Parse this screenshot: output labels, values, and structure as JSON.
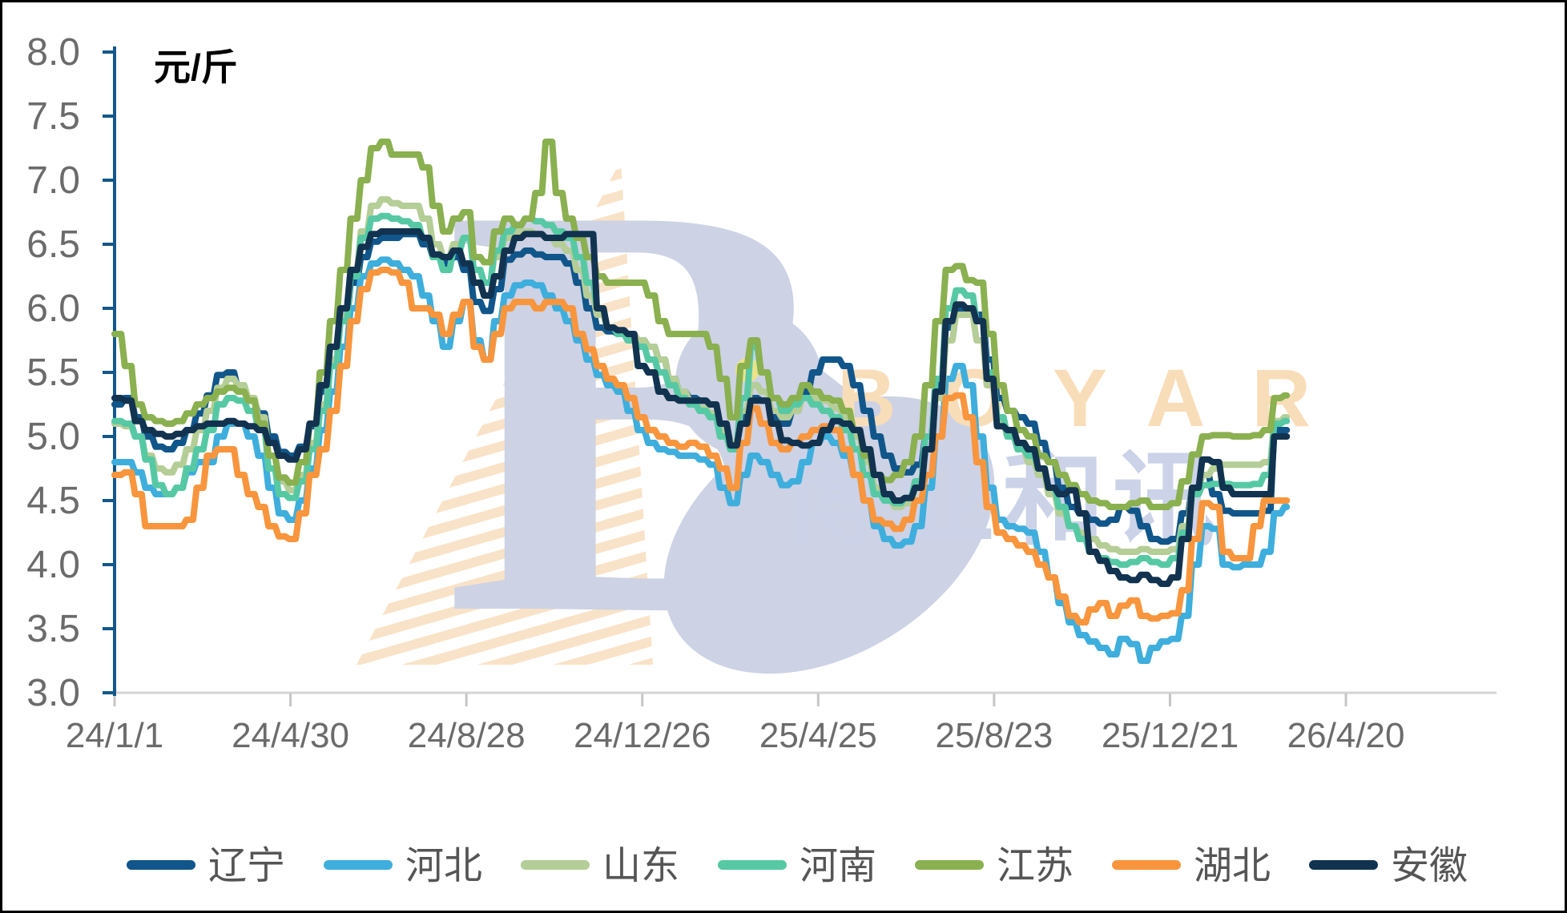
{
  "chart": {
    "unit_label": "元/斤",
    "axes": {
      "y_axis_color": "#14578b",
      "y_label_color": "#6b6b6b",
      "x_line_color": "#d4d4d4",
      "x_tick_color": "#c6c6c6",
      "x_label_color": "#6b6b6b",
      "y_tick_labels": [
        "8.0",
        "7.5",
        "7.0",
        "6.5",
        "6.0",
        "5.5",
        "5.0",
        "4.5",
        "4.0",
        "3.5",
        "3.0"
      ],
      "x_tick_labels": [
        "24/1/1",
        "24/4/30",
        "24/8/28",
        "24/12/26",
        "25/4/25",
        "25/8/23",
        "25/12/21",
        "26/4/20"
      ]
    },
    "watermark": {
      "latin": "BOYAR",
      "cn": "博亚和讯",
      "body_color": "#cdd2e4",
      "stripe_color": "#f8e3c8",
      "latin_color": "#f8ddb9",
      "cn_color": "#ccd3e8",
      "eye_color": "#ece28a"
    }
  },
  "legend": {
    "items": [
      {
        "label": "辽宁",
        "color": "#11568a"
      },
      {
        "label": "河北",
        "color": "#3eaedd"
      },
      {
        "label": "山东",
        "color": "#b5cd96"
      },
      {
        "label": "河南",
        "color": "#56c9a4"
      },
      {
        "label": "江苏",
        "color": "#8ab04f"
      },
      {
        "label": "湖北",
        "color": "#f8953d"
      },
      {
        "label": "安徽",
        "color": "#123350"
      }
    ]
  },
  "chart_data": {
    "type": "line",
    "title": "",
    "ylabel": "元/斤",
    "ylim": [
      3.0,
      8.0
    ],
    "y_tick_step": 0.5,
    "x_start_date": "24/1/1",
    "x_interval_days": 7,
    "x_tick_interval_days": 120,
    "x_tick_labels": [
      "24/1/1",
      "24/4/30",
      "24/8/28",
      "24/12/26",
      "25/4/25",
      "25/8/23",
      "25/12/21",
      "26/4/20"
    ],
    "grid": false,
    "legend_position": "bottom",
    "series": [
      {
        "name": "辽宁",
        "color": "#11568a",
        "values": [
          5.25,
          5.3,
          5.15,
          5.0,
          4.92,
          4.9,
          4.95,
          5.05,
          5.18,
          5.32,
          5.48,
          5.5,
          5.38,
          5.28,
          5.18,
          5.0,
          4.88,
          4.85,
          4.92,
          5.08,
          5.35,
          5.6,
          5.9,
          6.2,
          6.4,
          6.52,
          6.55,
          6.55,
          6.58,
          6.58,
          6.5,
          6.4,
          6.35,
          6.4,
          6.3,
          6.05,
          5.98,
          6.15,
          6.38,
          6.42,
          6.45,
          6.42,
          6.4,
          6.4,
          6.35,
          6.2,
          6.0,
          5.85,
          5.82,
          5.8,
          5.8,
          5.75,
          5.7,
          5.6,
          5.45,
          5.35,
          5.3,
          5.28,
          5.25,
          5.1,
          4.95,
          5.15,
          5.3,
          5.28,
          5.15,
          5.1,
          5.2,
          5.35,
          5.5,
          5.6,
          5.6,
          5.55,
          5.4,
          5.2,
          5.0,
          4.85,
          4.75,
          4.72,
          4.78,
          5.0,
          5.4,
          5.85,
          6.0,
          6.0,
          5.95,
          5.6,
          5.3,
          5.2,
          5.15,
          5.1,
          4.95,
          4.8,
          4.6,
          4.45,
          4.4,
          4.35,
          4.32,
          4.35,
          4.45,
          4.42,
          4.3,
          4.2,
          4.18,
          4.2,
          4.4,
          4.6,
          4.7,
          4.55,
          4.42,
          4.4,
          4.4,
          4.4,
          4.42,
          5.05,
          5.05
        ]
      },
      {
        "name": "河北",
        "color": "#3eaedd",
        "values": [
          4.8,
          4.8,
          4.72,
          4.6,
          4.55,
          4.55,
          4.6,
          4.72,
          4.8,
          4.8,
          5.0,
          5.1,
          5.1,
          5.0,
          4.85,
          4.6,
          4.4,
          4.35,
          4.5,
          4.75,
          5.05,
          5.35,
          5.7,
          6.0,
          6.25,
          6.35,
          6.38,
          6.35,
          6.3,
          6.25,
          6.1,
          5.9,
          5.7,
          5.9,
          6.05,
          5.75,
          5.6,
          5.9,
          6.1,
          6.18,
          6.2,
          6.18,
          6.1,
          6.0,
          5.9,
          5.75,
          5.6,
          5.48,
          5.4,
          5.35,
          5.2,
          5.05,
          4.95,
          4.9,
          4.88,
          4.85,
          4.85,
          4.82,
          4.78,
          4.6,
          4.48,
          4.7,
          4.85,
          4.8,
          4.7,
          4.62,
          4.65,
          4.8,
          4.95,
          5.0,
          4.95,
          4.85,
          4.7,
          4.5,
          4.3,
          4.2,
          4.15,
          4.18,
          4.3,
          4.6,
          5.0,
          5.45,
          5.55,
          5.4,
          5.0,
          4.6,
          4.35,
          4.3,
          4.28,
          4.25,
          4.1,
          3.9,
          3.7,
          3.55,
          3.45,
          3.4,
          3.35,
          3.3,
          3.42,
          3.38,
          3.25,
          3.35,
          3.4,
          3.42,
          3.6,
          4.0,
          4.3,
          4.28,
          4.0,
          3.98,
          4.0,
          4.0,
          4.1,
          4.4,
          4.45
        ]
      },
      {
        "name": "山东",
        "color": "#b5cd96",
        "values": [
          5.1,
          5.08,
          5.0,
          4.85,
          4.75,
          4.72,
          4.78,
          4.9,
          5.05,
          5.2,
          5.38,
          5.45,
          5.4,
          5.3,
          5.15,
          4.85,
          4.65,
          4.58,
          4.7,
          4.95,
          5.25,
          5.6,
          5.95,
          6.3,
          6.6,
          6.8,
          6.85,
          6.82,
          6.8,
          6.8,
          6.7,
          6.5,
          6.4,
          6.5,
          6.55,
          6.3,
          6.2,
          6.4,
          6.55,
          6.6,
          6.6,
          6.58,
          6.55,
          6.5,
          6.45,
          6.3,
          6.1,
          5.95,
          5.85,
          5.82,
          5.8,
          5.75,
          5.7,
          5.6,
          5.45,
          5.35,
          5.28,
          5.22,
          5.18,
          5.05,
          4.95,
          5.2,
          5.4,
          5.35,
          5.2,
          5.15,
          5.2,
          5.3,
          5.3,
          5.28,
          5.22,
          5.15,
          5.0,
          4.8,
          4.6,
          4.5,
          4.45,
          4.48,
          4.6,
          4.9,
          5.3,
          5.75,
          5.95,
          5.95,
          5.75,
          5.4,
          5.1,
          5.0,
          4.9,
          4.8,
          4.7,
          4.55,
          4.4,
          4.3,
          4.25,
          4.2,
          4.15,
          4.12,
          4.1,
          4.1,
          4.12,
          4.1,
          4.1,
          4.12,
          4.3,
          4.6,
          4.7,
          4.75,
          4.78,
          4.78,
          4.78,
          4.78,
          4.8,
          5.12,
          5.15
        ]
      },
      {
        "name": "河南",
        "color": "#56c9a4",
        "values": [
          5.12,
          5.1,
          5.0,
          4.82,
          4.62,
          4.55,
          4.6,
          4.75,
          4.9,
          5.05,
          5.25,
          5.3,
          5.28,
          5.2,
          5.05,
          4.75,
          4.55,
          4.52,
          4.65,
          4.9,
          5.2,
          5.55,
          5.9,
          6.25,
          6.55,
          6.7,
          6.72,
          6.7,
          6.68,
          6.65,
          6.55,
          6.4,
          6.3,
          6.45,
          6.55,
          6.3,
          6.2,
          6.45,
          6.6,
          6.65,
          6.7,
          6.68,
          6.65,
          6.6,
          6.55,
          6.4,
          6.2,
          6.0,
          5.85,
          5.8,
          5.75,
          5.7,
          5.6,
          5.5,
          5.4,
          5.3,
          5.25,
          5.2,
          5.15,
          5.0,
          4.9,
          5.3,
          5.7,
          5.5,
          5.3,
          5.2,
          5.25,
          5.3,
          5.25,
          5.2,
          5.15,
          5.05,
          4.9,
          4.7,
          4.55,
          4.5,
          4.48,
          4.52,
          4.65,
          5.0,
          5.45,
          6.0,
          6.14,
          6.1,
          5.9,
          5.5,
          5.15,
          5.0,
          4.9,
          4.85,
          4.75,
          4.6,
          4.45,
          4.3,
          4.2,
          4.1,
          4.05,
          4.02,
          4.0,
          4.02,
          4.05,
          4.02,
          4.0,
          4.05,
          4.25,
          4.55,
          4.62,
          4.63,
          4.63,
          4.62,
          4.62,
          4.63,
          4.7,
          5.1,
          5.12
        ]
      },
      {
        "name": "江苏",
        "color": "#8ab04f",
        "values": [
          5.8,
          5.55,
          5.25,
          5.15,
          5.12,
          5.1,
          5.12,
          5.18,
          5.25,
          5.3,
          5.35,
          5.38,
          5.35,
          5.28,
          5.1,
          4.85,
          4.68,
          4.64,
          4.8,
          5.1,
          5.5,
          5.9,
          6.3,
          6.7,
          7.0,
          7.25,
          7.3,
          7.2,
          7.2,
          7.2,
          7.1,
          6.8,
          6.6,
          6.7,
          6.75,
          6.4,
          6.36,
          6.6,
          6.7,
          6.65,
          6.7,
          6.9,
          7.3,
          6.9,
          6.7,
          6.55,
          6.4,
          6.25,
          6.2,
          6.2,
          6.2,
          6.2,
          6.1,
          5.9,
          5.8,
          5.8,
          5.8,
          5.8,
          5.7,
          5.45,
          5.15,
          5.55,
          5.75,
          5.5,
          5.3,
          5.25,
          5.3,
          5.4,
          5.35,
          5.3,
          5.28,
          5.2,
          5.05,
          4.85,
          4.7,
          4.66,
          4.7,
          4.8,
          5.0,
          5.4,
          5.9,
          6.3,
          6.33,
          6.22,
          6.2,
          5.8,
          5.4,
          5.2,
          5.05,
          5.0,
          4.85,
          4.8,
          4.7,
          4.62,
          4.55,
          4.5,
          4.48,
          4.45,
          4.45,
          4.48,
          4.5,
          4.45,
          4.45,
          4.48,
          4.65,
          4.86,
          5.0,
          5.01,
          5.01,
          5.0,
          5.0,
          5.01,
          5.05,
          5.3,
          5.32
        ]
      },
      {
        "name": "湖北",
        "color": "#f8953d",
        "values": [
          4.7,
          4.72,
          4.55,
          4.3,
          4.3,
          4.3,
          4.3,
          4.35,
          4.6,
          4.85,
          4.9,
          4.9,
          4.7,
          4.55,
          4.45,
          4.3,
          4.22,
          4.2,
          4.4,
          4.7,
          4.9,
          5.2,
          5.55,
          5.9,
          6.15,
          6.28,
          6.3,
          6.28,
          6.2,
          6.0,
          6.0,
          5.95,
          5.8,
          5.95,
          6.05,
          5.7,
          5.6,
          5.8,
          6.0,
          6.05,
          6.05,
          6.0,
          6.05,
          6.05,
          6.0,
          5.8,
          5.68,
          5.55,
          5.45,
          5.4,
          5.3,
          5.15,
          5.05,
          5.0,
          4.95,
          4.92,
          4.95,
          4.92,
          4.85,
          4.75,
          4.6,
          4.95,
          5.22,
          5.1,
          4.95,
          4.9,
          4.95,
          5.0,
          5.05,
          5.08,
          5.05,
          4.9,
          4.7,
          4.5,
          4.35,
          4.32,
          4.28,
          4.35,
          4.5,
          4.7,
          5.0,
          5.3,
          5.32,
          5.15,
          4.8,
          4.45,
          4.25,
          4.2,
          4.15,
          4.1,
          4.0,
          3.9,
          3.75,
          3.6,
          3.55,
          3.65,
          3.7,
          3.6,
          3.68,
          3.72,
          3.6,
          3.58,
          3.6,
          3.62,
          3.8,
          4.2,
          4.48,
          4.45,
          4.1,
          4.05,
          4.05,
          4.3,
          4.5,
          4.5,
          4.5
        ]
      },
      {
        "name": "安徽",
        "color": "#123350",
        "values": [
          5.3,
          5.28,
          5.12,
          5.05,
          5.02,
          5.0,
          5.02,
          5.05,
          5.08,
          5.1,
          5.1,
          5.12,
          5.1,
          5.08,
          5.05,
          4.95,
          4.85,
          4.82,
          4.9,
          5.1,
          5.4,
          5.7,
          6.0,
          6.3,
          6.48,
          6.58,
          6.6,
          6.6,
          6.6,
          6.6,
          6.55,
          6.42,
          6.4,
          6.45,
          6.35,
          6.2,
          6.1,
          6.25,
          6.45,
          6.55,
          6.58,
          6.58,
          6.55,
          6.55,
          6.58,
          6.58,
          6.58,
          6.0,
          5.85,
          5.83,
          5.8,
          5.55,
          5.5,
          5.35,
          5.3,
          5.28,
          5.28,
          5.28,
          5.25,
          5.1,
          4.93,
          5.1,
          5.28,
          5.28,
          5.1,
          4.97,
          4.95,
          4.93,
          4.95,
          5.05,
          5.12,
          5.1,
          5.05,
          4.9,
          4.7,
          4.55,
          4.5,
          4.52,
          4.6,
          4.9,
          5.35,
          5.9,
          6.03,
          6.0,
          5.9,
          5.45,
          5.08,
          5.05,
          4.95,
          4.9,
          4.75,
          4.6,
          4.55,
          4.58,
          4.4,
          4.1,
          4.03,
          3.95,
          3.9,
          3.88,
          3.92,
          3.88,
          3.85,
          3.9,
          4.2,
          4.6,
          4.82,
          4.8,
          4.6,
          4.55,
          4.55,
          4.55,
          4.55,
          5.0,
          5.0
        ]
      }
    ]
  }
}
